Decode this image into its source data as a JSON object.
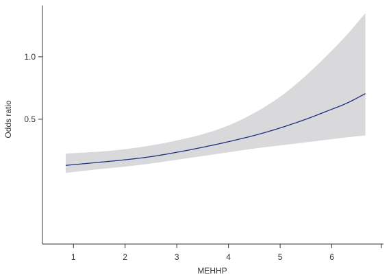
{
  "chart_data": {
    "type": "line",
    "title": "",
    "xlabel": "MEHHP",
    "ylabel": "Odds ratio",
    "xlim": [
      0.4,
      7.0
    ],
    "ylim": [
      -0.5,
      1.4
    ],
    "x_ticks": [
      1,
      2,
      3,
      4,
      5,
      6
    ],
    "x_tick_labels": [
      "1",
      "2",
      "3",
      "4",
      "5",
      "6"
    ],
    "y_ticks": [
      0.5,
      1.0
    ],
    "y_tick_labels": [
      "0.5",
      "1.0"
    ],
    "grid": false,
    "series": [
      {
        "kind": "line",
        "x": [
          0.85,
          1.5,
          2.0,
          2.5,
          3.0,
          3.5,
          4.0,
          4.5,
          5.0,
          5.5,
          6.0,
          6.3,
          6.65
        ],
        "values": [
          0.13,
          0.155,
          0.175,
          0.2,
          0.235,
          0.275,
          0.32,
          0.37,
          0.43,
          0.5,
          0.58,
          0.63,
          0.705
        ]
      },
      {
        "kind": "band",
        "x": [
          0.85,
          1.5,
          2.0,
          2.5,
          3.0,
          3.5,
          4.0,
          4.5,
          5.0,
          5.5,
          6.0,
          6.3,
          6.65
        ],
        "lower": [
          0.07,
          0.1,
          0.12,
          0.145,
          0.175,
          0.205,
          0.235,
          0.265,
          0.29,
          0.315,
          0.34,
          0.355,
          0.37
        ],
        "upper": [
          0.225,
          0.24,
          0.26,
          0.29,
          0.33,
          0.38,
          0.45,
          0.55,
          0.68,
          0.85,
          1.05,
          1.18,
          1.35
        ]
      }
    ],
    "colors": {
      "line": "#1f2f7a",
      "band": "#d9d9db",
      "axis": "#333333"
    }
  }
}
